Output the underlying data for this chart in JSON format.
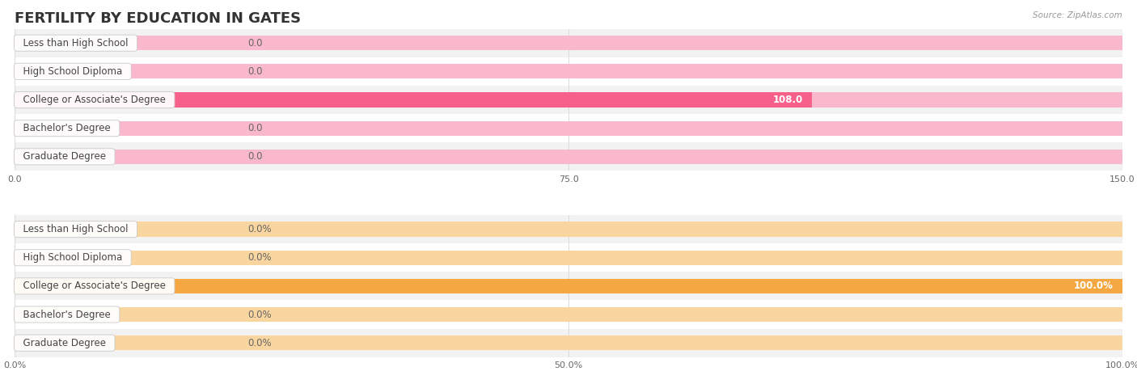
{
  "title": "FERTILITY BY EDUCATION IN GATES",
  "source": "Source: ZipAtlas.com",
  "top_chart": {
    "categories": [
      "Less than High School",
      "High School Diploma",
      "College or Associate's Degree",
      "Bachelor's Degree",
      "Graduate Degree"
    ],
    "values": [
      0.0,
      0.0,
      108.0,
      0.0,
      0.0
    ],
    "max_value": 150.0,
    "xticks": [
      0.0,
      75.0,
      150.0
    ],
    "xtick_labels": [
      "0.0",
      "75.0",
      "150.0"
    ],
    "bar_color_active": "#F7608A",
    "bar_color_inactive": "#F9B8CB",
    "label_bg": "#FFFFFF",
    "label_color": "#444444",
    "value_color_on_bar": "#FFFFFF",
    "value_color_off_bar": "#666666",
    "is_percent": false
  },
  "bottom_chart": {
    "categories": [
      "Less than High School",
      "High School Diploma",
      "College or Associate's Degree",
      "Bachelor's Degree",
      "Graduate Degree"
    ],
    "values": [
      0.0,
      0.0,
      100.0,
      0.0,
      0.0
    ],
    "max_value": 100.0,
    "xticks": [
      0.0,
      50.0,
      100.0
    ],
    "xtick_labels": [
      "0.0%",
      "50.0%",
      "100.0%"
    ],
    "bar_color_active": "#F5A742",
    "bar_color_inactive": "#F9D5A0",
    "label_bg": "#FFFFFF",
    "label_color": "#444444",
    "value_color_on_bar": "#FFFFFF",
    "value_color_off_bar": "#666666",
    "is_percent": true
  },
  "bg_color": "#FFFFFF",
  "row_bg_even": "#F2F2F2",
  "row_bg_odd": "#FFFFFF",
  "grid_color": "#DDDDDD",
  "title_color": "#333333",
  "title_fontsize": 13,
  "label_fontsize": 8.5,
  "value_fontsize": 8.5,
  "tick_fontsize": 8,
  "source_fontsize": 7.5
}
